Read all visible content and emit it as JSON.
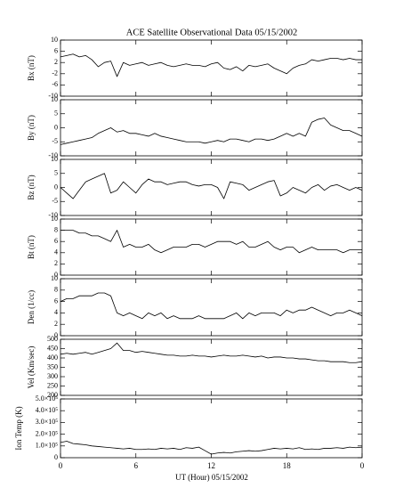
{
  "chart_data": [
    {
      "type": "line",
      "title": "ACE Satellite Observational Data   05/15/2002",
      "ylabel": "Bx (nT)",
      "x": [
        0,
        0.5,
        1,
        1.5,
        2,
        2.5,
        3,
        3.5,
        4,
        4.5,
        5,
        5.5,
        6,
        6.5,
        7,
        7.5,
        8,
        8.5,
        9,
        9.5,
        10,
        10.5,
        11,
        11.5,
        12,
        12.5,
        13,
        13.5,
        14,
        14.5,
        15,
        15.5,
        16,
        16.5,
        17,
        17.5,
        18,
        18.5,
        19,
        19.5,
        20,
        20.5,
        21,
        21.5,
        22,
        22.5,
        23,
        23.5,
        24
      ],
      "values": [
        4,
        4.5,
        5,
        4,
        4.5,
        3,
        0.5,
        2,
        2.5,
        -3,
        2,
        1,
        1.5,
        2,
        1,
        1.5,
        2,
        1,
        0.5,
        1,
        1.5,
        1,
        1,
        0.5,
        1.5,
        2,
        0,
        -0.5,
        0.5,
        -1,
        1,
        0.5,
        1,
        1.5,
        0,
        -1,
        -2,
        0,
        1,
        1.5,
        3,
        2.5,
        3,
        3.5,
        3.5,
        3,
        3.5,
        3,
        3
      ],
      "xlim": [
        0,
        24
      ],
      "xticks": [
        0,
        6,
        12,
        18,
        {
          "value": 24,
          "label": "0"
        }
      ],
      "ylim": [
        -10,
        10
      ],
      "yticks": [
        -10,
        -6,
        -2,
        2,
        6,
        10
      ],
      "color": "#000000"
    },
    {
      "type": "line",
      "ylabel": "By (nT)",
      "x": [
        0,
        0.5,
        1,
        1.5,
        2,
        2.5,
        3,
        3.5,
        4,
        4.5,
        5,
        5.5,
        6,
        6.5,
        7,
        7.5,
        8,
        8.5,
        9,
        9.5,
        10,
        10.5,
        11,
        11.5,
        12,
        12.5,
        13,
        13.5,
        14,
        14.5,
        15,
        15.5,
        16,
        16.5,
        17,
        17.5,
        18,
        18.5,
        19,
        19.5,
        20,
        20.5,
        21,
        21.5,
        22,
        22.5,
        23,
        23.5,
        24
      ],
      "values": [
        -6,
        -5.5,
        -5,
        -4.5,
        -4,
        -3.5,
        -2,
        -1,
        0,
        -1.5,
        -1,
        -2,
        -2,
        -2.5,
        -3,
        -2,
        -3,
        -3.5,
        -4,
        -4.5,
        -5,
        -5,
        -5,
        -5.5,
        -5,
        -4.5,
        -5,
        -4,
        -4,
        -4.5,
        -5,
        -4,
        -4,
        -4.5,
        -4,
        -3,
        -2,
        -3,
        -2,
        -3,
        2,
        3,
        3.5,
        1,
        0,
        -1,
        -1,
        -2,
        -3
      ],
      "xlim": [
        0,
        24
      ],
      "xticks": [
        0,
        6,
        12,
        18,
        {
          "value": 24,
          "label": "0"
        }
      ],
      "ylim": [
        -10,
        10
      ],
      "yticks": [
        -10,
        -5,
        0,
        5,
        10
      ],
      "color": "#000000"
    },
    {
      "type": "line",
      "ylabel": "Bz (nT)",
      "x": [
        0,
        0.5,
        1,
        1.5,
        2,
        2.5,
        3,
        3.5,
        4,
        4.5,
        5,
        5.5,
        6,
        6.5,
        7,
        7.5,
        8,
        8.5,
        9,
        9.5,
        10,
        10.5,
        11,
        11.5,
        12,
        12.5,
        13,
        13.5,
        14,
        14.5,
        15,
        15.5,
        16,
        16.5,
        17,
        17.5,
        18,
        18.5,
        19,
        19.5,
        20,
        20.5,
        21,
        21.5,
        22,
        22.5,
        23,
        23.5,
        24
      ],
      "values": [
        0,
        -2,
        -4,
        -1,
        2,
        3,
        4,
        5,
        -2,
        -1,
        2,
        0,
        -2,
        1,
        3,
        2,
        2,
        1,
        1.5,
        2,
        2,
        1,
        0.5,
        1,
        1,
        0,
        -4,
        2,
        1.5,
        1,
        -1,
        0,
        1,
        2,
        2.5,
        -3,
        -2,
        0,
        -1,
        -2,
        0,
        1,
        -1,
        0.5,
        1,
        0,
        -1,
        0,
        -1
      ],
      "xlim": [
        0,
        24
      ],
      "xticks": [
        0,
        6,
        12,
        18,
        {
          "value": 24,
          "label": "0"
        }
      ],
      "ylim": [
        -10,
        10
      ],
      "yticks": [
        -10,
        -5,
        0,
        5,
        10
      ],
      "color": "#000000"
    },
    {
      "type": "line",
      "ylabel": "Bt (nT)",
      "x": [
        0,
        0.5,
        1,
        1.5,
        2,
        2.5,
        3,
        3.5,
        4,
        4.5,
        5,
        5.5,
        6,
        6.5,
        7,
        7.5,
        8,
        8.5,
        9,
        9.5,
        10,
        10.5,
        11,
        11.5,
        12,
        12.5,
        13,
        13.5,
        14,
        14.5,
        15,
        15.5,
        16,
        16.5,
        17,
        17.5,
        18,
        18.5,
        19,
        19.5,
        20,
        20.5,
        21,
        21.5,
        22,
        22.5,
        23,
        23.5,
        24
      ],
      "values": [
        8,
        8,
        8,
        7.5,
        7.5,
        7,
        7,
        6.5,
        6,
        8,
        5,
        5.5,
        5,
        5,
        5.5,
        4.5,
        4,
        4.5,
        5,
        5,
        5,
        5.5,
        5.5,
        5,
        5.5,
        6,
        6,
        6,
        5.5,
        6,
        5,
        5,
        5.5,
        6,
        5,
        4.5,
        5,
        5,
        4,
        4.5,
        5,
        4.5,
        4.5,
        4.5,
        4.5,
        4,
        4.5,
        4.5,
        4.5
      ],
      "xlim": [
        0,
        24
      ],
      "xticks": [
        0,
        6,
        12,
        18,
        {
          "value": 24,
          "label": "0"
        }
      ],
      "ylim": [
        0,
        10
      ],
      "yticks": [
        0,
        2,
        4,
        6,
        8,
        10
      ],
      "color": "#000000"
    },
    {
      "type": "line",
      "ylabel": "Den (1/cc)",
      "x": [
        0,
        0.5,
        1,
        1.5,
        2,
        2.5,
        3,
        3.5,
        4,
        4.5,
        5,
        5.5,
        6,
        6.5,
        7,
        7.5,
        8,
        8.5,
        9,
        9.5,
        10,
        10.5,
        11,
        11.5,
        12,
        12.5,
        13,
        13.5,
        14,
        14.5,
        15,
        15.5,
        16,
        16.5,
        17,
        17.5,
        18,
        18.5,
        19,
        19.5,
        20,
        20.5,
        21,
        21.5,
        22,
        22.5,
        23,
        23.5,
        24
      ],
      "values": [
        6,
        6.5,
        6.5,
        7,
        7,
        7,
        7.5,
        7.5,
        7,
        4,
        3.5,
        4,
        3.5,
        3,
        4,
        3.5,
        4,
        3,
        3.5,
        3,
        3,
        3,
        3.5,
        3,
        3,
        3,
        3,
        3.5,
        4,
        3,
        4,
        3.5,
        4,
        4,
        4,
        3.5,
        4.5,
        4,
        4.5,
        4.5,
        5,
        4.5,
        4,
        3.5,
        4,
        4,
        4.5,
        4,
        3.5
      ],
      "xlim": [
        0,
        24
      ],
      "xticks": [
        0,
        6,
        12,
        18,
        {
          "value": 24,
          "label": "0"
        }
      ],
      "ylim": [
        0,
        10
      ],
      "yticks": [
        0,
        2,
        4,
        6,
        8,
        10
      ],
      "color": "#000000"
    },
    {
      "type": "line",
      "ylabel": "Vel (Km/sec)",
      "x": [
        0,
        0.5,
        1,
        1.5,
        2,
        2.5,
        3,
        3.5,
        4,
        4.5,
        5,
        5.5,
        6,
        6.5,
        7,
        7.5,
        8,
        8.5,
        9,
        9.5,
        10,
        10.5,
        11,
        11.5,
        12,
        12.5,
        13,
        13.5,
        14,
        14.5,
        15,
        15.5,
        16,
        16.5,
        17,
        17.5,
        18,
        18.5,
        19,
        19.5,
        20,
        20.5,
        21,
        21.5,
        22,
        22.5,
        23,
        23.5,
        24
      ],
      "values": [
        420,
        425,
        420,
        425,
        430,
        420,
        430,
        440,
        450,
        480,
        440,
        440,
        430,
        435,
        430,
        425,
        420,
        415,
        415,
        410,
        410,
        415,
        410,
        410,
        405,
        410,
        415,
        410,
        410,
        415,
        410,
        405,
        410,
        400,
        405,
        405,
        400,
        400,
        395,
        395,
        390,
        385,
        385,
        380,
        380,
        380,
        375,
        375,
        380
      ],
      "xlim": [
        0,
        24
      ],
      "xticks": [
        0,
        6,
        12,
        18,
        {
          "value": 24,
          "label": "0"
        }
      ],
      "ylim": [
        200,
        500
      ],
      "yticks": [
        200,
        250,
        300,
        350,
        400,
        450,
        500
      ],
      "color": "#000000"
    },
    {
      "type": "line",
      "ylabel": "Ion Temp (K)",
      "xlabel": "UT (Hour)   05/15/2002",
      "x": [
        0,
        0.5,
        1,
        1.5,
        2,
        2.5,
        3,
        3.5,
        4,
        4.5,
        5,
        5.5,
        6,
        6.5,
        7,
        7.5,
        8,
        8.5,
        9,
        9.5,
        10,
        10.5,
        11,
        11.5,
        12,
        12.5,
        13,
        13.5,
        14,
        14.5,
        15,
        15.5,
        16,
        16.5,
        17,
        17.5,
        18,
        18.5,
        19,
        19.5,
        20,
        20.5,
        21,
        21.5,
        22,
        22.5,
        23,
        23.5,
        24
      ],
      "values": [
        130000,
        140000,
        120000,
        115000,
        110000,
        100000,
        95000,
        90000,
        85000,
        80000,
        75000,
        80000,
        70000,
        70000,
        75000,
        70000,
        80000,
        75000,
        80000,
        70000,
        85000,
        80000,
        90000,
        60000,
        30000,
        40000,
        45000,
        40000,
        50000,
        55000,
        60000,
        55000,
        60000,
        70000,
        80000,
        75000,
        80000,
        75000,
        85000,
        70000,
        75000,
        70000,
        80000,
        80000,
        85000,
        80000,
        90000,
        85000,
        90000
      ],
      "xlim": [
        0,
        24
      ],
      "xticks": [
        0,
        6,
        12,
        18,
        {
          "value": 24,
          "label": "0"
        }
      ],
      "ylim": [
        0,
        500000
      ],
      "yticks": [
        0,
        {
          "value": 100000,
          "label": "1.0×10⁵"
        },
        {
          "value": 200000,
          "label": "2.0×10⁵"
        },
        {
          "value": 300000,
          "label": "3.0×10⁵"
        },
        {
          "value": 400000,
          "label": "4.0×10⁵"
        },
        {
          "value": 500000,
          "label": "5.0×10⁵"
        }
      ],
      "color": "#000000"
    }
  ]
}
